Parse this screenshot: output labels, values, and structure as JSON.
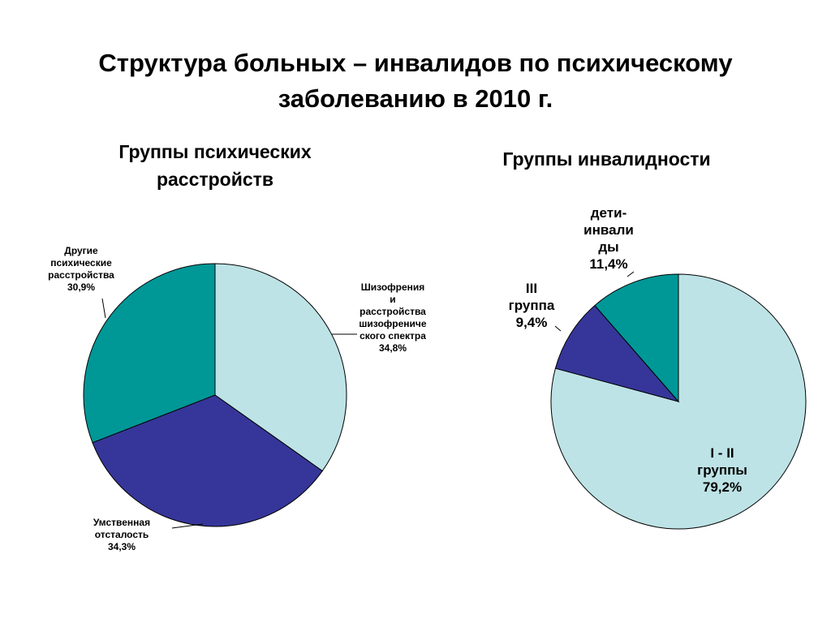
{
  "title": [
    "Структура больных – инвалидов по психическому",
    "заболеванию в 2010 г."
  ],
  "colors": {
    "light_blue": "#bde3e6",
    "indigo": "#36369a",
    "teal": "#009797",
    "outline": "#000000"
  },
  "chart_data": [
    {
      "type": "pie",
      "title": [
        "Группы психических",
        "расстройств"
      ],
      "slices": [
        {
          "label": [
            "Шизофрения",
            "и",
            "расстройства",
            "шизофрениче",
            "ского спектра"
          ],
          "value": 34.8,
          "value_label": "34,8%",
          "color": "#bde3e6"
        },
        {
          "label": [
            "Умственная",
            "отсталость"
          ],
          "value": 34.3,
          "value_label": "34,3%",
          "color": "#36369a"
        },
        {
          "label": [
            "Другие",
            "психические",
            "расстройства"
          ],
          "value": 30.9,
          "value_label": "30,9%",
          "color": "#009797"
        }
      ]
    },
    {
      "type": "pie",
      "title": [
        "Группы инвалидности"
      ],
      "slices": [
        {
          "label": [
            "I - II",
            "группы"
          ],
          "value": 79.2,
          "value_label": "79,2%",
          "color": "#bde3e6"
        },
        {
          "label": [
            "III",
            "группа"
          ],
          "value": 9.4,
          "value_label": "9,4%",
          "color": "#36369a"
        },
        {
          "label": [
            "дети-",
            "инвали",
            "ды"
          ],
          "value": 11.4,
          "value_label": "11,4%",
          "color": "#009797"
        }
      ]
    }
  ]
}
